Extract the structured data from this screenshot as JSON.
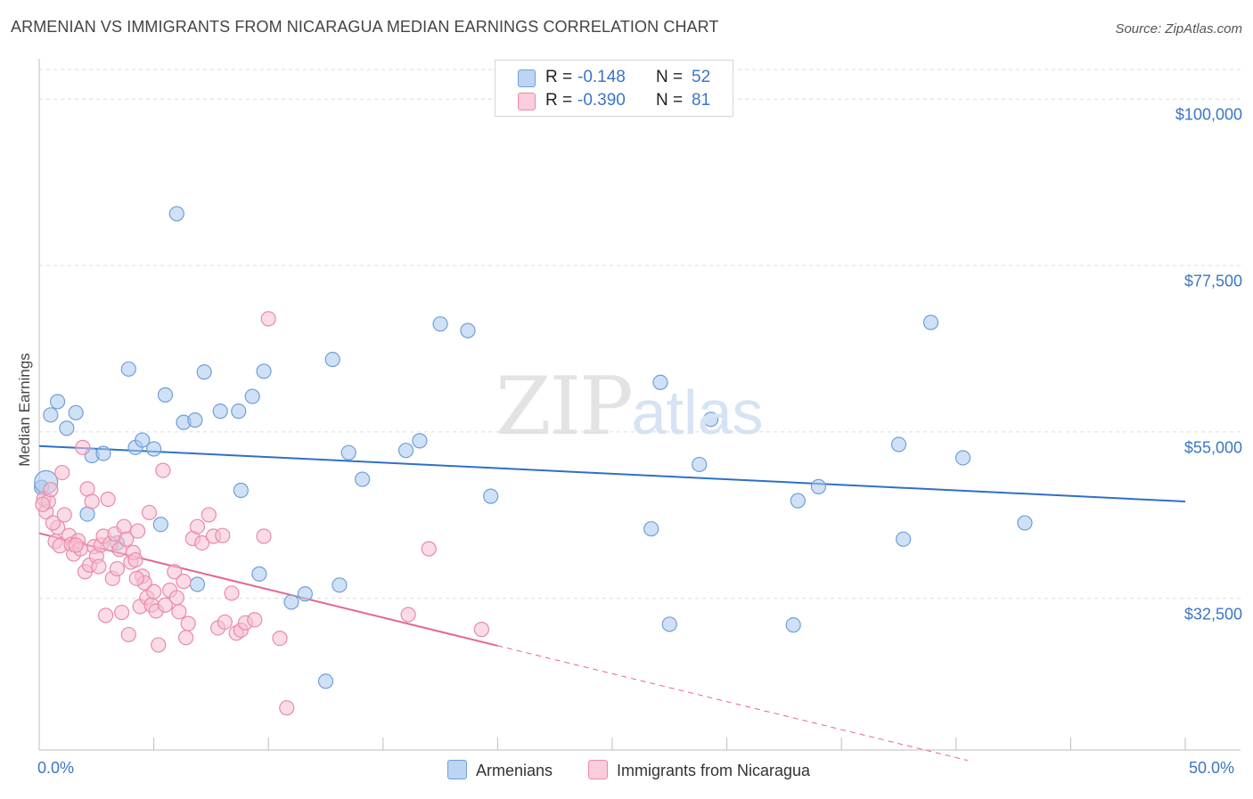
{
  "header": {
    "title": "ARMENIAN VS IMMIGRANTS FROM NICARAGUA MEDIAN EARNINGS CORRELATION CHART",
    "source": "Source: ZipAtlas.com"
  },
  "watermark": {
    "zip": "ZIP",
    "atlas": "atlas"
  },
  "colors": {
    "armenians_fill": "#a9c8ef",
    "armenians_stroke": "#6f9fd8",
    "armenians_line": "#2f6fc8",
    "nicaragua_fill": "#f6bfd1",
    "nicaragua_stroke": "#e98aac",
    "nicaragua_line": "#e4678f",
    "tick_text": "#3b76c4",
    "grid": "#dcdcdc"
  },
  "legend": {
    "rows": [
      {
        "r_label": "R =",
        "r_value": "-0.148",
        "n_label": "N =",
        "n_value": "52"
      },
      {
        "r_label": "R =",
        "r_value": "-0.390",
        "n_label": "N =",
        "n_value": "81"
      }
    ]
  },
  "bottom_legend": {
    "armenians": "Armenians",
    "nicaragua": "Immigrants from Nicaragua"
  },
  "chart_data": {
    "type": "scatter",
    "title": "ARMENIAN VS IMMIGRANTS FROM NICARAGUA MEDIAN EARNINGS CORRELATION CHART",
    "xlabel": "",
    "ylabel": "Median Earnings",
    "xlim": [
      0,
      50
    ],
    "ylim": [
      12000,
      104000
    ],
    "x_tick_labels": [
      "0.0%",
      "50.0%"
    ],
    "y_ticks": [
      {
        "value": 32500,
        "label": "$32,500"
      },
      {
        "value": 55000,
        "label": "$55,000"
      },
      {
        "value": 77500,
        "label": "$77,500"
      },
      {
        "value": 100000,
        "label": "$100,000"
      }
    ],
    "grid": true,
    "legend_position": "top-center",
    "series": [
      {
        "name": "Armenians",
        "r": -0.148,
        "n": 52,
        "trend": {
          "x": [
            0,
            50
          ],
          "y": [
            53100,
            45600
          ],
          "dashed_to": null
        },
        "points": [
          [
            0.1,
            47500
          ],
          [
            0.5,
            57300
          ],
          [
            0.8,
            59100
          ],
          [
            1.2,
            55500
          ],
          [
            1.6,
            57600
          ],
          [
            2.1,
            43900
          ],
          [
            2.3,
            51800
          ],
          [
            2.8,
            52100
          ],
          [
            3.4,
            40000
          ],
          [
            3.9,
            63500
          ],
          [
            4.2,
            52900
          ],
          [
            4.5,
            53900
          ],
          [
            5.0,
            52700
          ],
          [
            5.3,
            42500
          ],
          [
            5.5,
            60000
          ],
          [
            6.0,
            84500
          ],
          [
            6.3,
            56300
          ],
          [
            6.8,
            56600
          ],
          [
            6.9,
            34400
          ],
          [
            7.2,
            63100
          ],
          [
            7.9,
            57800
          ],
          [
            8.7,
            57800
          ],
          [
            8.8,
            47100
          ],
          [
            9.3,
            59800
          ],
          [
            9.6,
            35800
          ],
          [
            9.8,
            63200
          ],
          [
            11.0,
            32000
          ],
          [
            11.6,
            33100
          ],
          [
            12.5,
            21300
          ],
          [
            12.8,
            64800
          ],
          [
            13.1,
            34300
          ],
          [
            13.5,
            52200
          ],
          [
            14.1,
            48600
          ],
          [
            16.0,
            52500
          ],
          [
            16.6,
            53800
          ],
          [
            17.5,
            69600
          ],
          [
            18.7,
            68700
          ],
          [
            19.7,
            46300
          ],
          [
            26.7,
            41900
          ],
          [
            27.1,
            61700
          ],
          [
            27.5,
            29000
          ],
          [
            28.8,
            50600
          ],
          [
            29.3,
            56700
          ],
          [
            32.9,
            28900
          ],
          [
            33.1,
            45700
          ],
          [
            34.0,
            47600
          ],
          [
            37.5,
            53300
          ],
          [
            37.7,
            40500
          ],
          [
            38.9,
            69800
          ],
          [
            40.3,
            51500
          ],
          [
            43.0,
            42700
          ],
          [
            0.3,
            48200
          ]
        ]
      },
      {
        "name": "Immigrants from Nicaragua",
        "r": -0.39,
        "n": 81,
        "trend": {
          "x": [
            0,
            20
          ],
          "y": [
            41300,
            26100
          ],
          "dashed_to": {
            "x": 40.5,
            "y": 10600
          }
        },
        "points": [
          [
            0.2,
            46000
          ],
          [
            0.3,
            44200
          ],
          [
            0.4,
            45600
          ],
          [
            0.5,
            47200
          ],
          [
            0.7,
            40200
          ],
          [
            0.8,
            42100
          ],
          [
            0.9,
            39600
          ],
          [
            1.0,
            49500
          ],
          [
            1.1,
            43800
          ],
          [
            1.3,
            41000
          ],
          [
            1.4,
            39800
          ],
          [
            1.5,
            38500
          ],
          [
            1.7,
            40300
          ],
          [
            1.8,
            39200
          ],
          [
            1.9,
            52900
          ],
          [
            2.0,
            36100
          ],
          [
            2.1,
            47300
          ],
          [
            2.2,
            37000
          ],
          [
            2.3,
            45600
          ],
          [
            2.4,
            39500
          ],
          [
            2.5,
            38200
          ],
          [
            2.7,
            39700
          ],
          [
            2.8,
            40900
          ],
          [
            2.9,
            30200
          ],
          [
            3.0,
            45900
          ],
          [
            3.1,
            39900
          ],
          [
            3.2,
            35200
          ],
          [
            3.3,
            41200
          ],
          [
            3.4,
            36500
          ],
          [
            3.5,
            39100
          ],
          [
            3.6,
            30600
          ],
          [
            3.7,
            42200
          ],
          [
            3.8,
            40500
          ],
          [
            3.9,
            27600
          ],
          [
            4.0,
            37400
          ],
          [
            4.1,
            38700
          ],
          [
            4.2,
            37700
          ],
          [
            4.3,
            41600
          ],
          [
            4.4,
            31400
          ],
          [
            4.5,
            35500
          ],
          [
            4.6,
            34600
          ],
          [
            4.7,
            32600
          ],
          [
            4.8,
            44100
          ],
          [
            4.9,
            31600
          ],
          [
            5.0,
            33400
          ],
          [
            5.1,
            30800
          ],
          [
            5.2,
            26200
          ],
          [
            5.4,
            49800
          ],
          [
            5.5,
            31600
          ],
          [
            5.7,
            33600
          ],
          [
            5.9,
            36100
          ],
          [
            6.1,
            30700
          ],
          [
            6.3,
            34800
          ],
          [
            6.4,
            27200
          ],
          [
            6.5,
            29100
          ],
          [
            6.7,
            40600
          ],
          [
            6.9,
            42200
          ],
          [
            7.1,
            40000
          ],
          [
            7.4,
            43800
          ],
          [
            7.6,
            40900
          ],
          [
            7.8,
            28500
          ],
          [
            8.1,
            29300
          ],
          [
            8.4,
            33200
          ],
          [
            8.6,
            27800
          ],
          [
            8.8,
            28200
          ],
          [
            9.0,
            29200
          ],
          [
            9.4,
            29600
          ],
          [
            9.8,
            40900
          ],
          [
            10.0,
            70300
          ],
          [
            10.5,
            27100
          ],
          [
            10.8,
            17700
          ],
          [
            16.1,
            30300
          ],
          [
            17.0,
            39200
          ],
          [
            19.3,
            28300
          ],
          [
            0.15,
            45200
          ],
          [
            0.6,
            42700
          ],
          [
            1.6,
            39700
          ],
          [
            2.6,
            36800
          ],
          [
            4.25,
            35200
          ],
          [
            6.0,
            32600
          ],
          [
            8.0,
            41000
          ]
        ]
      }
    ]
  }
}
